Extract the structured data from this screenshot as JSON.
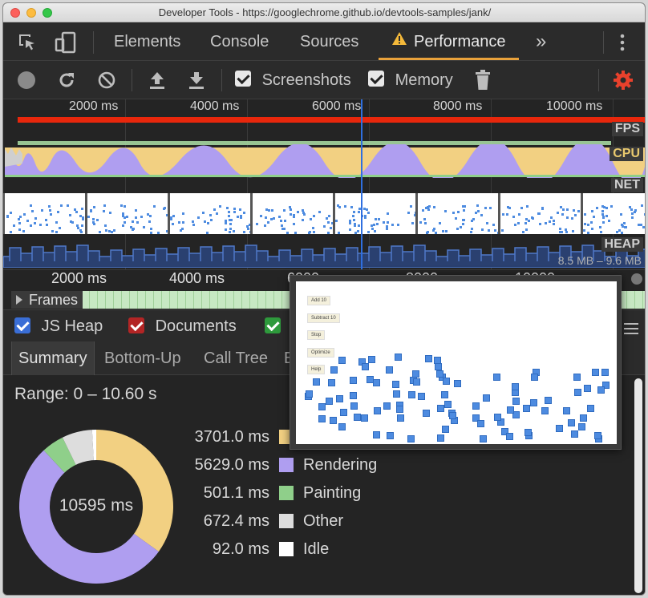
{
  "window": {
    "title": "Developer Tools - https://googlechrome.github.io/devtools-samples/jank/"
  },
  "tabs": {
    "elements": "Elements",
    "console": "Console",
    "sources": "Sources",
    "performance": "Performance",
    "more": "»"
  },
  "toolbar": {
    "screenshots_label": "Screenshots",
    "screenshots_checked": true,
    "memory_label": "Memory",
    "memory_checked": true
  },
  "overview": {
    "ticks": [
      "2000 ms",
      "4000 ms",
      "6000 ms",
      "8000 ms",
      "10000 ms"
    ],
    "fps_label": "FPS",
    "cpu_label": "CPU",
    "net_label": "NET",
    "heap_label": "HEAP",
    "heap_range": "8.5 MB – 9.6 MB"
  },
  "flame": {
    "ticks": [
      "2000 ms",
      "4000 ms",
      "6000 ms",
      "8000 ms",
      "10000 ms"
    ],
    "frames_label": "Frames"
  },
  "popup_buttons": [
    "Add 10",
    "Subtract 10",
    "Stop",
    "Optimize",
    "Help"
  ],
  "memory_legend": {
    "js_heap": "JS Heap",
    "documents": "Documents"
  },
  "subtabs": {
    "summary": "Summary",
    "bottom_up": "Bottom-Up",
    "call_tree": "Call Tree",
    "event_log_partial": "E"
  },
  "summary": {
    "range": "Range: 0 – 10.60 s",
    "total": "10595 ms",
    "rows": [
      {
        "ms": "3701.0 ms",
        "name": "",
        "value": 3701.0,
        "color": "#f2d082"
      },
      {
        "ms": "5629.0 ms",
        "name": "Rendering",
        "value": 5629.0,
        "color": "#af9ef0"
      },
      {
        "ms": "501.1 ms",
        "name": "Painting",
        "value": 501.1,
        "color": "#8fcf8a"
      },
      {
        "ms": "672.4 ms",
        "name": "Other",
        "value": 672.4,
        "color": "#dddddd"
      },
      {
        "ms": "92.0 ms",
        "name": "Idle",
        "value": 92.0,
        "color": "#ffffff"
      }
    ]
  },
  "colors": {
    "accent": "#e9a23b",
    "fps_bar": "#e8270c",
    "scripting": "#f2d082",
    "rendering": "#af9ef0",
    "painting": "#8fcf8a",
    "selection": "#2f6fe0",
    "settings": "#e8412c"
  }
}
